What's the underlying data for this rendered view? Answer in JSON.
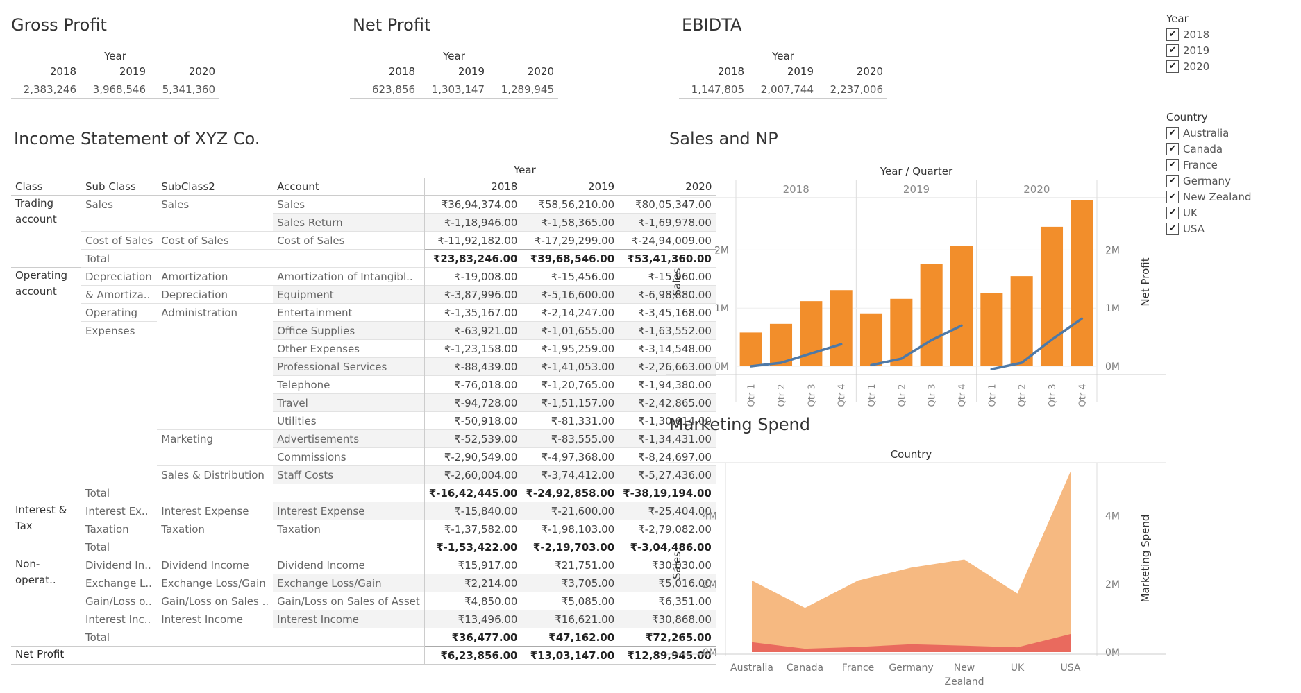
{
  "kpis": [
    {
      "title": "Gross Profit",
      "year_label": "Year",
      "years": [
        "2018",
        "2019",
        "2020"
      ],
      "values": [
        "2,383,246",
        "3,968,546",
        "5,341,360"
      ]
    },
    {
      "title": "Net Profit",
      "year_label": "Year",
      "years": [
        "2018",
        "2019",
        "2020"
      ],
      "values": [
        "623,856",
        "1,303,147",
        "1,289,945"
      ]
    },
    {
      "title": "EBIDTA",
      "year_label": "Year",
      "years": [
        "2018",
        "2019",
        "2020"
      ],
      "values": [
        "1,147,805",
        "2,007,744",
        "2,237,006"
      ]
    }
  ],
  "income": {
    "title": "Income Statement of XYZ Co.",
    "year_label": "Year",
    "headers": [
      "Class",
      "Sub Class",
      "SubClass2",
      "Account",
      "2018",
      "2019",
      "2020"
    ],
    "rows": [
      {
        "c": "Trading account",
        "s": "Sales",
        "s2": "Sales",
        "a": "Sales",
        "v": [
          "₹36,94,374.00",
          "₹58,56,210.00",
          "₹80,05,347.00"
        ]
      },
      {
        "c": "",
        "s": "",
        "s2": "",
        "a": "Sales Return",
        "v": [
          "₹-1,18,946.00",
          "₹-1,58,365.00",
          "₹-1,69,978.00"
        ]
      },
      {
        "c": "",
        "s": "Cost of Sales",
        "s2": "Cost of Sales",
        "a": "Cost of Sales",
        "v": [
          "₹-11,92,182.00",
          "₹-17,29,299.00",
          "₹-24,94,009.00"
        ]
      },
      {
        "c": "",
        "s": "Total",
        "s2": "",
        "a": "",
        "v": [
          "₹23,83,246.00",
          "₹39,68,546.00",
          "₹53,41,360.00"
        ],
        "t": true
      },
      {
        "c": "Operating account",
        "s": "Depreciation",
        "s2": "Amortization",
        "a": "Amortization of Intangibl..",
        "v": [
          "₹-19,008.00",
          "₹-15,456.00",
          "₹-15,960.00"
        ]
      },
      {
        "c": "",
        "s": "& Amortiza..",
        "s2": "Depreciation",
        "a": "Equipment",
        "v": [
          "₹-3,87,996.00",
          "₹-5,16,600.00",
          "₹-6,98,880.00"
        ]
      },
      {
        "c": "",
        "s": "Operating",
        "s2": "Administration",
        "a": "Entertainment",
        "v": [
          "₹-1,35,167.00",
          "₹-2,14,247.00",
          "₹-3,45,168.00"
        ]
      },
      {
        "c": "",
        "s": "Expenses",
        "s2": "",
        "a": "Office Supplies",
        "v": [
          "₹-63,921.00",
          "₹-1,01,655.00",
          "₹-1,63,552.00"
        ]
      },
      {
        "c": "",
        "s": "",
        "s2": "",
        "a": "Other Expenses",
        "v": [
          "₹-1,23,158.00",
          "₹-1,95,259.00",
          "₹-3,14,548.00"
        ]
      },
      {
        "c": "",
        "s": "",
        "s2": "",
        "a": "Professional Services",
        "v": [
          "₹-88,439.00",
          "₹-1,41,053.00",
          "₹-2,26,663.00"
        ]
      },
      {
        "c": "",
        "s": "",
        "s2": "",
        "a": "Telephone",
        "v": [
          "₹-76,018.00",
          "₹-1,20,765.00",
          "₹-1,94,380.00"
        ]
      },
      {
        "c": "",
        "s": "",
        "s2": "",
        "a": "Travel",
        "v": [
          "₹-94,728.00",
          "₹-1,51,157.00",
          "₹-2,42,865.00"
        ]
      },
      {
        "c": "",
        "s": "",
        "s2": "",
        "a": "Utilities",
        "v": [
          "₹-50,918.00",
          "₹-81,331.00",
          "₹-1,30,614.00"
        ]
      },
      {
        "c": "",
        "s": "",
        "s2": "Marketing",
        "a": "Advertisements",
        "v": [
          "₹-52,539.00",
          "₹-83,555.00",
          "₹-1,34,431.00"
        ]
      },
      {
        "c": "",
        "s": "",
        "s2": "",
        "a": "Commissions",
        "v": [
          "₹-2,90,549.00",
          "₹-4,97,368.00",
          "₹-8,24,697.00"
        ]
      },
      {
        "c": "",
        "s": "",
        "s2": "Sales & Distribution",
        "a": "Staff Costs",
        "v": [
          "₹-2,60,004.00",
          "₹-3,74,412.00",
          "₹-5,27,436.00"
        ]
      },
      {
        "c": "",
        "s": "Total",
        "s2": "",
        "a": "",
        "v": [
          "₹-16,42,445.00",
          "₹-24,92,858.00",
          "₹-38,19,194.00"
        ],
        "t": true
      },
      {
        "c": "Interest & Tax",
        "s": "Interest Ex..",
        "s2": "Interest Expense",
        "a": "Interest Expense",
        "v": [
          "₹-15,840.00",
          "₹-21,600.00",
          "₹-25,404.00"
        ]
      },
      {
        "c": "",
        "s": "Taxation",
        "s2": "Taxation",
        "a": "Taxation",
        "v": [
          "₹-1,37,582.00",
          "₹-1,98,103.00",
          "₹-2,79,082.00"
        ]
      },
      {
        "c": "",
        "s": "Total",
        "s2": "",
        "a": "",
        "v": [
          "₹-1,53,422.00",
          "₹-2,19,703.00",
          "₹-3,04,486.00"
        ],
        "t": true
      },
      {
        "c": "Non-operat..",
        "s": "Dividend In..",
        "s2": "Dividend Income",
        "a": "Dividend Income",
        "v": [
          "₹15,917.00",
          "₹21,751.00",
          "₹30,030.00"
        ]
      },
      {
        "c": "",
        "s": "Exchange L..",
        "s2": "Exchange Loss/Gain",
        "a": "Exchange Loss/Gain",
        "v": [
          "₹2,214.00",
          "₹3,705.00",
          "₹5,016.00"
        ]
      },
      {
        "c": "",
        "s": "Gain/Loss o..",
        "s2": "Gain/Loss on Sales ..",
        "a": "Gain/Loss on Sales of Asset",
        "v": [
          "₹4,850.00",
          "₹5,085.00",
          "₹6,351.00"
        ]
      },
      {
        "c": "",
        "s": "Interest Inc..",
        "s2": "Interest Income",
        "a": "Interest Income",
        "v": [
          "₹13,496.00",
          "₹16,621.00",
          "₹30,868.00"
        ]
      },
      {
        "c": "",
        "s": "Total",
        "s2": "",
        "a": "",
        "v": [
          "₹36,477.00",
          "₹47,162.00",
          "₹72,265.00"
        ],
        "t": true
      },
      {
        "c": "Net Profit",
        "s": "",
        "s2": "",
        "a": "",
        "v": [
          "₹6,23,856.00",
          "₹13,03,147.00",
          "₹12,89,945.00"
        ],
        "t": true
      }
    ]
  },
  "filters": {
    "year": {
      "title": "Year",
      "items": [
        "2018",
        "2019",
        "2020"
      ]
    },
    "country": {
      "title": "Country",
      "items": [
        "Australia",
        "Canada",
        "France",
        "Germany",
        "New Zealand",
        "UK",
        "USA"
      ]
    }
  },
  "chart_data": [
    {
      "type": "bar",
      "title": "Sales and NP",
      "header": "Year / Quarter",
      "ylabel": "Sales",
      "y2label": "Net Profit",
      "years": [
        "2018",
        "2019",
        "2020"
      ],
      "quarters": [
        "Qtr 1",
        "Qtr 2",
        "Qtr 3",
        "Qtr 4"
      ],
      "yticks": [
        "0M",
        "1M",
        "2M"
      ],
      "ylim": [
        0,
        2900000
      ],
      "series": [
        {
          "name": "Sales",
          "color": "#f28e2b",
          "values": [
            580000,
            730000,
            1120000,
            1310000,
            910000,
            1160000,
            1760000,
            2070000,
            1260000,
            1550000,
            2400000,
            2860000
          ]
        },
        {
          "name": "Net Profit",
          "color": "#4e79a7",
          "values": [
            0,
            60000,
            220000,
            380000,
            20000,
            130000,
            450000,
            700000,
            -50000,
            60000,
            460000,
            820000
          ]
        }
      ]
    },
    {
      "type": "area",
      "title": "Marketing Spend",
      "header": "Country",
      "ylabel": "Sales",
      "y2label": "Marketing Spend",
      "categories": [
        "Australia",
        "Canada",
        "France",
        "Germany",
        "New Zealand",
        "UK",
        "USA"
      ],
      "yticks": [
        "0M",
        "2M",
        "4M"
      ],
      "ylim": [
        0,
        5500000
      ],
      "series": [
        {
          "name": "Sales",
          "color": "#f5b57a",
          "values": [
            2100000,
            1300000,
            2100000,
            2480000,
            2720000,
            1720000,
            5300000
          ]
        },
        {
          "name": "Marketing Spend",
          "color": "#e8625a",
          "values": [
            290000,
            100000,
            150000,
            230000,
            190000,
            140000,
            530000
          ]
        }
      ]
    }
  ]
}
